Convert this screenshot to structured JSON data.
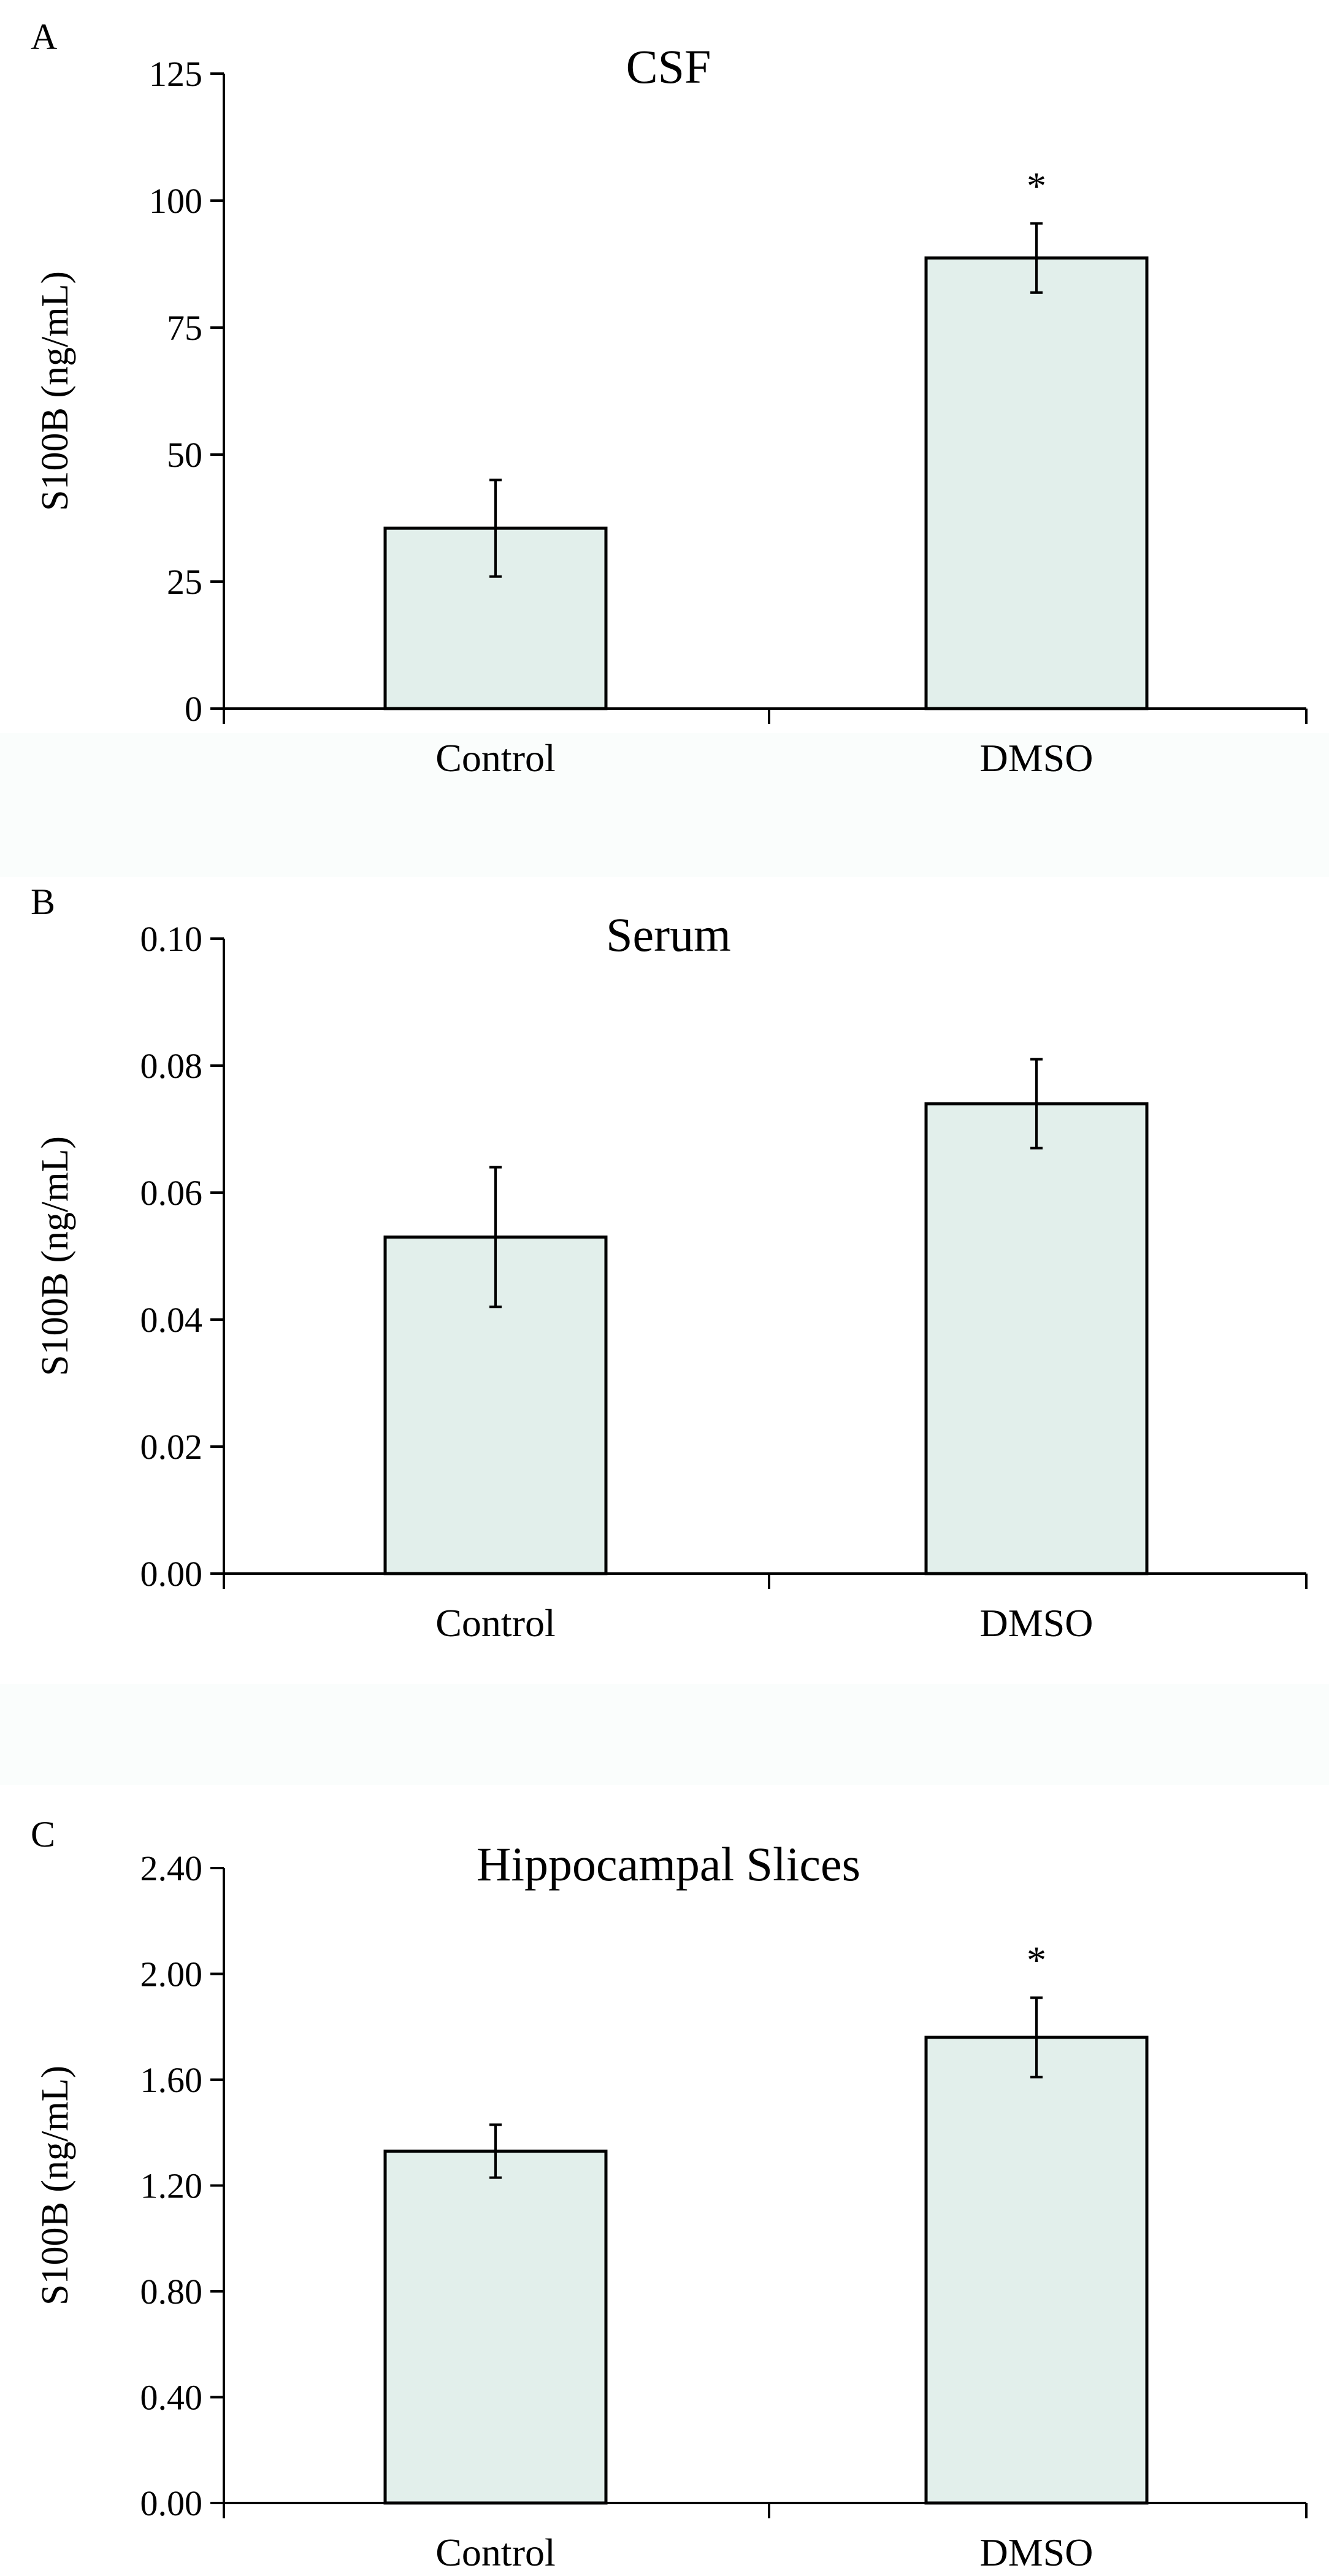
{
  "figure": {
    "background": "#ffffff",
    "band_color": "#fafdfc",
    "bar_fill": "#e2efeb",
    "line_color": "#000000"
  },
  "chart_data": [
    {
      "panel": "A",
      "type": "bar",
      "title": "CSF",
      "ylabel": "S100B (ng/mL)",
      "xlabel": "",
      "categories": [
        "Control",
        "DMSO"
      ],
      "values": [
        35.5,
        88.7
      ],
      "errors": [
        9.5,
        6.8
      ],
      "significance": [
        "",
        "*"
      ],
      "ylim": [
        0,
        125
      ],
      "yticks": [
        0,
        25,
        50,
        75,
        100,
        125
      ],
      "ytick_labels": [
        "0",
        "25",
        "50",
        "75",
        "100",
        "125"
      ],
      "grid": false
    },
    {
      "panel": "B",
      "type": "bar",
      "title": "Serum",
      "ylabel": "S100B (ng/mL)",
      "xlabel": "",
      "categories": [
        "Control",
        "DMSO"
      ],
      "values": [
        0.053,
        0.074
      ],
      "errors": [
        0.011,
        0.007
      ],
      "significance": [
        "",
        ""
      ],
      "ylim": [
        0,
        0.1
      ],
      "yticks": [
        0,
        0.02,
        0.04,
        0.06,
        0.08,
        0.1
      ],
      "ytick_labels": [
        "0.00",
        "0.02",
        "0.04",
        "0.06",
        "0.08",
        "0.10"
      ],
      "grid": false
    },
    {
      "panel": "C",
      "type": "bar",
      "title": "Hippocampal Slices",
      "ylabel": "S100B (ng/mL)",
      "xlabel": "",
      "categories": [
        "Control",
        "DMSO"
      ],
      "values": [
        1.33,
        1.76
      ],
      "errors": [
        0.1,
        0.15
      ],
      "significance": [
        "",
        "*"
      ],
      "ylim": [
        0,
        2.4
      ],
      "yticks": [
        0,
        0.4,
        0.8,
        1.2,
        1.6,
        2.0,
        2.4
      ],
      "ytick_labels": [
        "0.00",
        "0.40",
        "0.80",
        "1.20",
        "1.60",
        "2.00",
        "2.40"
      ],
      "grid": false
    }
  ]
}
